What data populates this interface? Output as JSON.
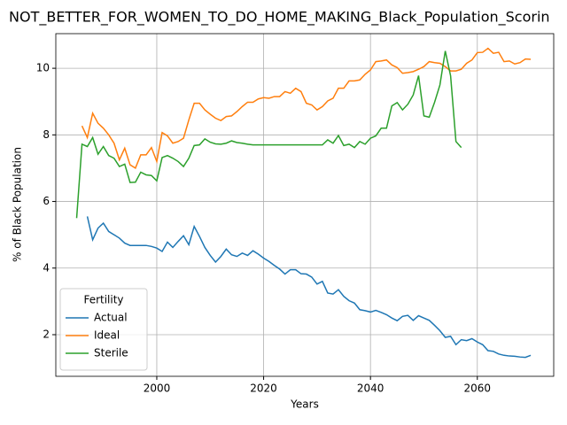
{
  "chart_data": {
    "type": "line",
    "title": "NOT_BETTER_FOR_WOMEN_TO_DO_HOME_MAKING_Black_Population_Scorin",
    "x_label": "Years",
    "y_label": "% of Black Population",
    "x": [
      1985,
      1986,
      1987,
      1988,
      1989,
      1990,
      1991,
      1992,
      1993,
      1994,
      1995,
      1996,
      1997,
      1998,
      1999,
      2000,
      2001,
      2002,
      2003,
      2004,
      2005,
      2006,
      2007,
      2008,
      2009,
      2010,
      2011,
      2012,
      2013,
      2014,
      2015,
      2016,
      2017,
      2018,
      2019,
      2020,
      2021,
      2022,
      2023,
      2024,
      2025,
      2026,
      2027,
      2028,
      2029,
      2030,
      2031,
      2032,
      2033,
      2034,
      2035,
      2036,
      2037,
      2038,
      2039,
      2040,
      2041,
      2042,
      2043,
      2044,
      2045,
      2046,
      2047,
      2048,
      2049,
      2050,
      2051,
      2052,
      2053,
      2054,
      2055,
      2056,
      2057,
      2058,
      2059,
      2060,
      2061,
      2062,
      2063,
      2064,
      2065,
      2066,
      2067,
      2068,
      2069,
      2070
    ],
    "series": [
      {
        "name": "Actual",
        "color": "#1f77b4",
        "values": [
          null,
          null,
          5.55,
          4.85,
          5.2,
          5.35,
          5.1,
          5.0,
          4.9,
          4.75,
          4.68,
          4.68,
          4.68,
          4.68,
          4.65,
          4.6,
          4.5,
          4.78,
          4.62,
          4.8,
          4.97,
          4.7,
          5.25,
          4.95,
          4.62,
          4.38,
          4.18,
          4.35,
          4.57,
          4.4,
          4.35,
          4.45,
          4.38,
          4.52,
          4.42,
          4.3,
          4.2,
          4.08,
          3.97,
          3.82,
          3.95,
          3.95,
          3.83,
          3.82,
          3.73,
          3.52,
          3.6,
          3.25,
          3.22,
          3.35,
          3.15,
          3.02,
          2.95,
          2.75,
          2.72,
          2.68,
          2.73,
          2.67,
          2.6,
          2.5,
          2.42,
          2.55,
          2.58,
          2.43,
          2.57,
          2.5,
          2.43,
          2.28,
          2.12,
          1.92,
          1.95,
          1.7,
          1.85,
          1.82,
          1.88,
          1.78,
          1.7,
          1.52,
          1.5,
          1.42,
          1.38,
          1.36,
          1.35,
          1.33,
          1.32,
          1.38
        ]
      },
      {
        "name": "Ideal",
        "color": "#ff7f0e",
        "values": [
          null,
          8.27,
          7.92,
          8.65,
          8.35,
          8.2,
          8.0,
          7.75,
          7.25,
          7.6,
          7.1,
          7.0,
          7.4,
          7.4,
          7.62,
          7.2,
          8.07,
          7.97,
          7.75,
          7.8,
          7.9,
          8.45,
          8.95,
          8.95,
          8.75,
          8.62,
          8.5,
          8.43,
          8.55,
          8.57,
          8.7,
          8.85,
          8.98,
          8.98,
          9.08,
          9.12,
          9.1,
          9.15,
          9.15,
          9.3,
          9.25,
          9.4,
          9.3,
          8.95,
          8.9,
          8.75,
          8.85,
          9.02,
          9.1,
          9.4,
          9.4,
          9.62,
          9.62,
          9.65,
          9.82,
          9.95,
          10.2,
          10.22,
          10.25,
          10.1,
          10.02,
          9.85,
          9.87,
          9.9,
          9.97,
          10.05,
          10.2,
          10.17,
          10.15,
          10.05,
          9.92,
          9.92,
          9.97,
          10.15,
          10.25,
          10.47,
          10.48,
          10.6,
          10.45,
          10.48,
          10.2,
          10.22,
          10.13,
          10.17,
          10.28,
          10.27
        ]
      },
      {
        "name": "Sterile",
        "color": "#2ca02c",
        "values": [
          5.5,
          7.72,
          7.65,
          7.92,
          7.42,
          7.65,
          7.38,
          7.3,
          7.05,
          7.12,
          6.57,
          6.58,
          6.88,
          6.8,
          6.78,
          6.62,
          7.32,
          7.38,
          7.3,
          7.2,
          7.05,
          7.3,
          7.68,
          7.7,
          7.88,
          7.78,
          7.73,
          7.72,
          7.75,
          7.82,
          7.77,
          7.75,
          7.72,
          7.7,
          7.7,
          7.7,
          7.7,
          7.7,
          7.7,
          7.7,
          7.7,
          7.7,
          7.7,
          7.7,
          7.7,
          7.7,
          7.7,
          7.85,
          7.75,
          7.98,
          7.68,
          7.72,
          7.62,
          7.8,
          7.72,
          7.9,
          7.97,
          8.2,
          8.2,
          8.87,
          8.97,
          8.75,
          8.92,
          9.2,
          9.78,
          8.57,
          8.53,
          8.98,
          9.5,
          10.52,
          9.77,
          7.8,
          7.62,
          null,
          null,
          null,
          null,
          null,
          null,
          null,
          null,
          null,
          null,
          null,
          null,
          null
        ]
      }
    ],
    "xlim": [
      1981.1,
      2074.3
    ],
    "xticks": [
      2000,
      2020,
      2040,
      2060
    ],
    "ylim": [
      0.75,
      11.04
    ],
    "yticks": [
      2,
      4,
      6,
      8,
      10
    ],
    "grid": true,
    "legend_title": "Fertility",
    "legend_position": "lower left"
  }
}
